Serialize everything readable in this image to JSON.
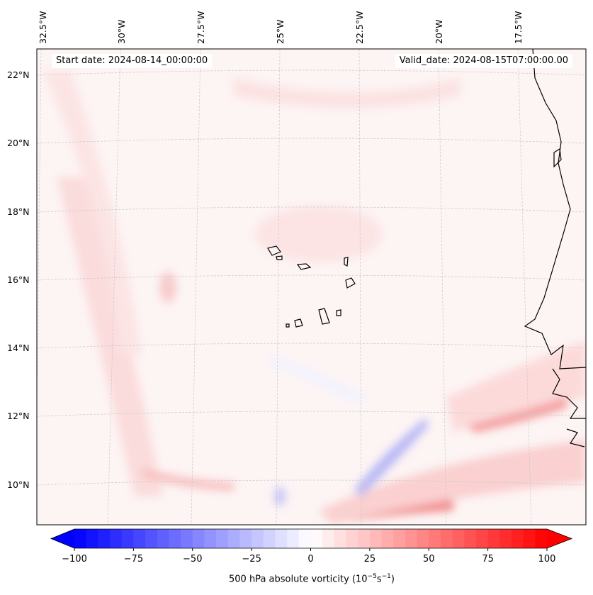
{
  "header": {
    "start_date": "Start date: 2024-08-14_00:00:00",
    "valid_date": "Valid_date: 2024-08-15T07:00:00.00"
  },
  "lon_labels": [
    "32.5°W",
    "30°W",
    "27.5°W",
    "25°W",
    "22.5°W",
    "20°W",
    "17.5°W"
  ],
  "lat_labels": [
    "22°N",
    "20°N",
    "18°N",
    "16°N",
    "14°N",
    "12°N",
    "10°N"
  ],
  "colorbar": {
    "ticks": [
      "−100",
      "−75",
      "−50",
      "−25",
      "0",
      "25",
      "50",
      "75",
      "100"
    ],
    "min": -100,
    "max": 100,
    "step": 5,
    "label_main": "500 hPa absolute vorticity (10",
    "label_exp1": "−5",
    "label_mid": "s",
    "label_exp2": "−1",
    "label_end": ")",
    "colormap": "bwr"
  },
  "colors": {
    "land_line": "#000000",
    "background": "#fdf4f4",
    "positive": "#ff0000",
    "negative": "#0000ff"
  }
}
